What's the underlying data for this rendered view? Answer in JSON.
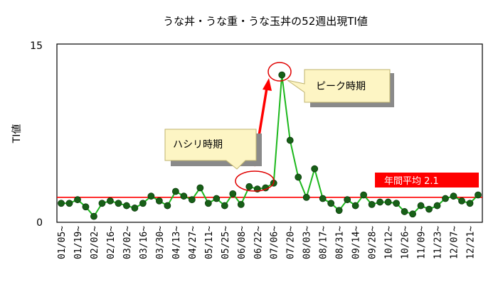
{
  "chart_data": {
    "type": "line",
    "title": "うな丼・うな重・うな玉丼の52週出現TI値",
    "ylabel": "TI値",
    "xlabel": "",
    "ylim": [
      0,
      15
    ],
    "y_ticks": [
      "0",
      "15"
    ],
    "grid": false,
    "legend": "none",
    "categories": [
      "01/05~",
      "01/12~",
      "01/19~",
      "01/26~",
      "02/02~",
      "02/09~",
      "02/16~",
      "02/23~",
      "03/02~",
      "03/09~",
      "03/16~",
      "03/23~",
      "03/30~",
      "04/06~",
      "04/13~",
      "04/20~",
      "04/27~",
      "05/04~",
      "05/11~",
      "05/18~",
      "05/25~",
      "06/01~",
      "06/08~",
      "06/15~",
      "06/22~",
      "06/29~",
      "07/06~",
      "07/13~",
      "07/20~",
      "07/27~",
      "08/03~",
      "08/10~",
      "08/17~",
      "08/24~",
      "08/31~",
      "09/07~",
      "09/14~",
      "09/21~",
      "09/28~",
      "10/05~",
      "10/12~",
      "10/19~",
      "10/26~",
      "11/02~",
      "11/09~",
      "11/16~",
      "11/23~",
      "11/30~",
      "12/07~",
      "12/14~",
      "12/21~",
      "12/28~"
    ],
    "x_tick_labels": [
      "01/05~",
      "01/19~",
      "02/02~",
      "02/16~",
      "03/02~",
      "03/16~",
      "03/30~",
      "04/13~",
      "04/27~",
      "05/11~",
      "05/25~",
      "06/08~",
      "06/22~",
      "07/06~",
      "07/20~",
      "08/03~",
      "08/17~",
      "08/31~",
      "09/14~",
      "09/28~",
      "10/12~",
      "10/26~",
      "11/09~",
      "11/23~",
      "12/07~",
      "12/21~"
    ],
    "series": [
      {
        "values": [
          1.6,
          1.6,
          1.9,
          1.3,
          0.5,
          1.6,
          1.8,
          1.6,
          1.4,
          1.2,
          1.6,
          2.2,
          1.8,
          1.4,
          2.6,
          2.2,
          1.9,
          2.9,
          1.6,
          2.0,
          1.4,
          2.4,
          1.5,
          3.0,
          2.8,
          2.9,
          3.3,
          12.4,
          6.9,
          3.8,
          2.1,
          4.5,
          2.0,
          1.6,
          1.0,
          1.9,
          1.4,
          2.3,
          1.5,
          1.7,
          1.7,
          1.6,
          0.9,
          0.7,
          1.4,
          1.1,
          1.4,
          2.0,
          2.2,
          1.8,
          1.6,
          2.3
        ]
      }
    ],
    "colors": {
      "line": "#1db81d",
      "marker": "#176017",
      "avg_line": "#ff0000",
      "annotation": "#e00000",
      "callout_fill": "#fdf5c4"
    },
    "average": {
      "value": 2.1,
      "label": "年間平均 2.1"
    },
    "annotations": {
      "peak": {
        "label": "ピーク時期",
        "at_category": "07/13~"
      },
      "hashiri": {
        "label": "ハシリ時期",
        "range": [
          "06/22~",
          "07/06~"
        ]
      }
    }
  }
}
